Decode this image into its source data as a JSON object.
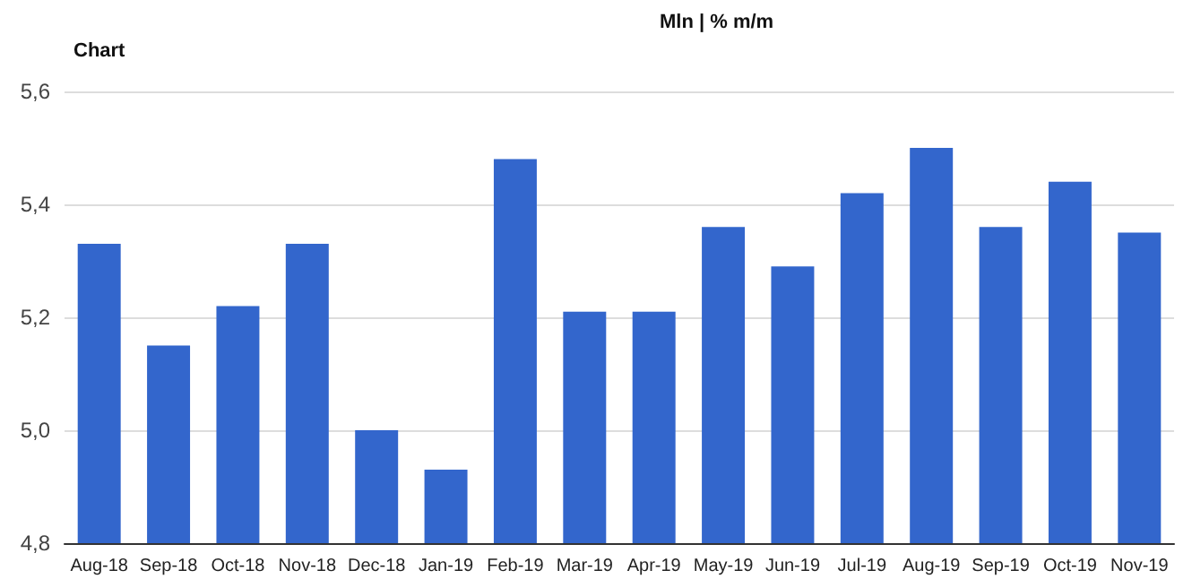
{
  "chart_data": {
    "type": "bar",
    "title": "Chart",
    "annotations": [
      "Mln | % m/m"
    ],
    "categories": [
      "Aug-18",
      "Sep-18",
      "Oct-18",
      "Nov-18",
      "Dec-18",
      "Jan-19",
      "Feb-19",
      "Mar-19",
      "Apr-19",
      "May-19",
      "Jun-19",
      "Jul-19",
      "Aug-19",
      "Sep-19",
      "Oct-19",
      "Nov-19"
    ],
    "values": [
      5.33,
      5.15,
      5.22,
      5.33,
      5.0,
      4.93,
      5.48,
      5.21,
      5.21,
      5.36,
      5.29,
      5.42,
      5.5,
      5.36,
      5.44,
      5.35
    ],
    "color": "#3366cc",
    "ylim": [
      4.8,
      5.6
    ],
    "yticks": [
      {
        "value": 4.8,
        "label": "4,8"
      },
      {
        "value": 5.0,
        "label": "5,0"
      },
      {
        "value": 5.2,
        "label": "5,2"
      },
      {
        "value": 5.4,
        "label": "5,4"
      },
      {
        "value": 5.6,
        "label": "5,6"
      }
    ],
    "grid": "y"
  }
}
